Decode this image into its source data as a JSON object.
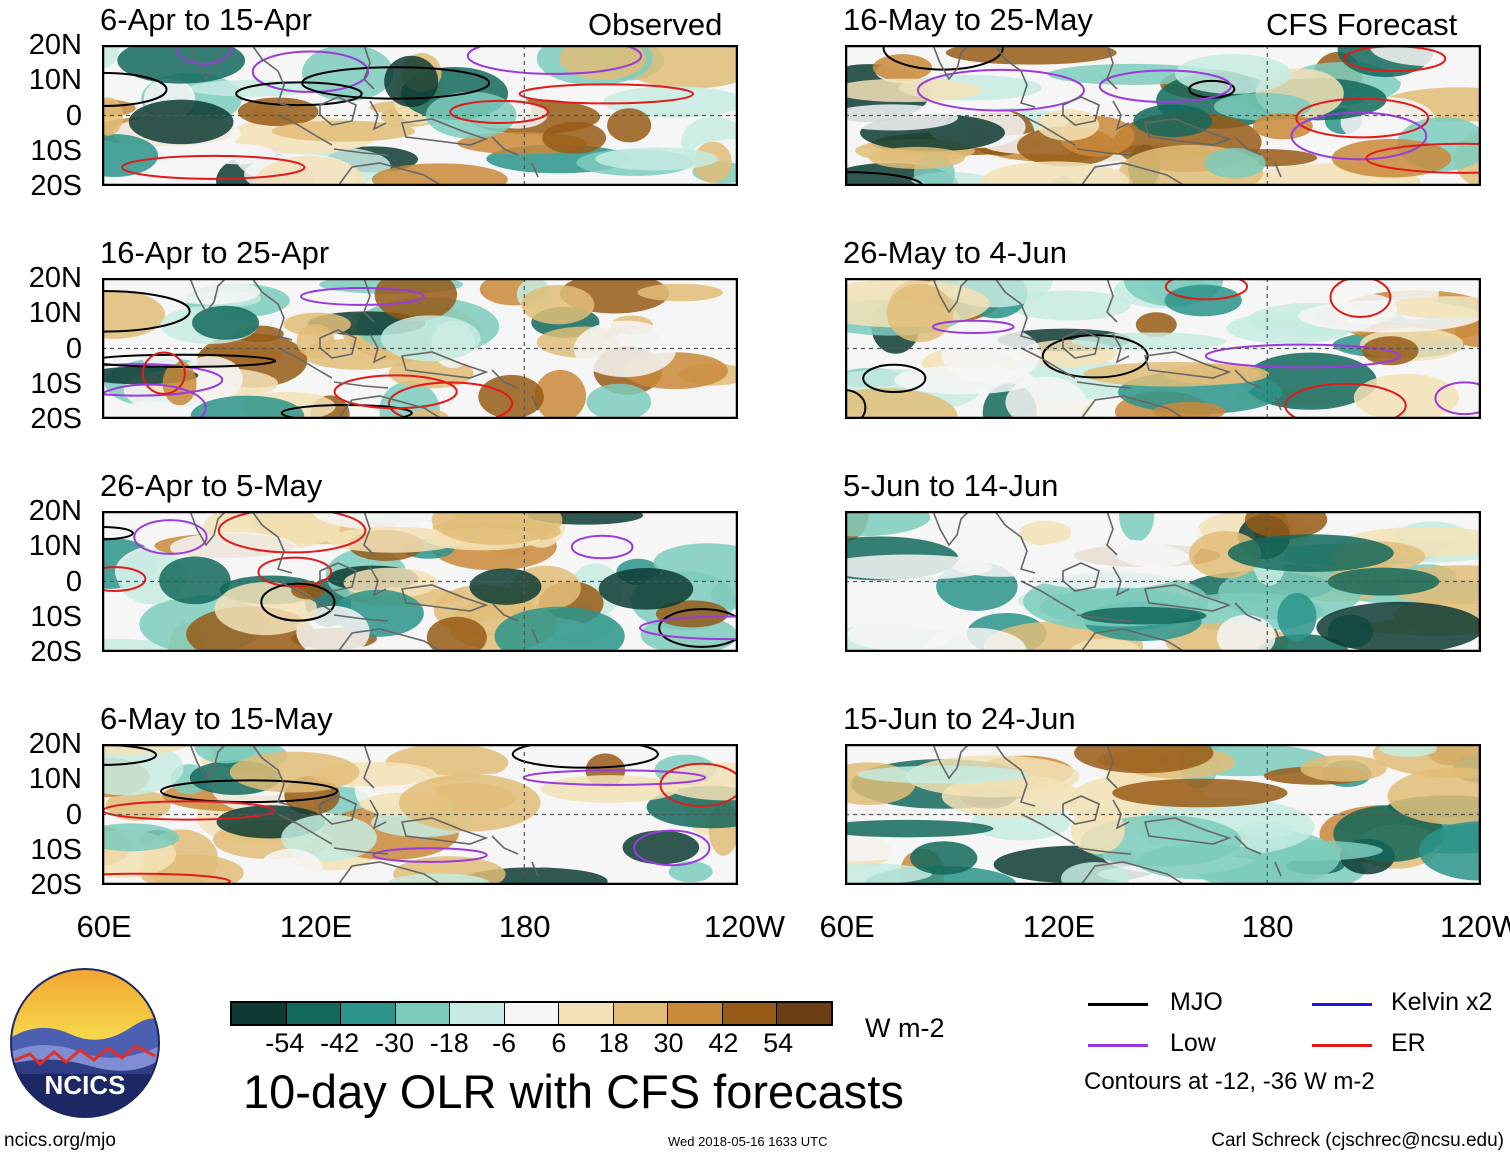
{
  "panels": [
    {
      "id": "p1",
      "title": "6-Apr to 15-Apr",
      "source": "Observed"
    },
    {
      "id": "p2",
      "title": "16-Apr to 25-Apr"
    },
    {
      "id": "p3",
      "title": "26-Apr to 5-May"
    },
    {
      "id": "p4",
      "title": "6-May to 15-May"
    },
    {
      "id": "p5",
      "title": "16-May to 25-May",
      "source": "CFS Forecast"
    },
    {
      "id": "p6",
      "title": "26-May to 4-Jun"
    },
    {
      "id": "p7",
      "title": "5-Jun to 14-Jun"
    },
    {
      "id": "p8",
      "title": "15-Jun to 24-Jun"
    }
  ],
  "lat_labels": [
    "20N",
    "10N",
    "0",
    "10S",
    "20S"
  ],
  "lon_labels": [
    "60E",
    "120E",
    "180",
    "120W"
  ],
  "colorbar": {
    "colors": [
      "#0d3b33",
      "#13685c",
      "#2c948a",
      "#7dcbbd",
      "#c5ebe2",
      "#f6f6f6",
      "#f3e2b7",
      "#e1bd78",
      "#c9893a",
      "#975a16",
      "#6b3d12"
    ],
    "ticks": [
      "-54",
      "-42",
      "-30",
      "-18",
      "-6",
      "6",
      "18",
      "30",
      "42",
      "54"
    ],
    "units": "W m-2"
  },
  "main_title": "10-day OLR with CFS forecasts",
  "legend": {
    "items": [
      {
        "label": "MJO",
        "color": "#000000"
      },
      {
        "label": "Kelvin x2",
        "color": "#1a1ae0"
      },
      {
        "label": "Low",
        "color": "#9b3bdc"
      },
      {
        "label": "ER",
        "color": "#e01b1b"
      }
    ],
    "contours_note": "Contours at -12, -36 W m-2"
  },
  "footer": {
    "url": "ncics.org/mjo",
    "timestamp": "Wed 2018-05-16 1633 UTC",
    "credit": "Carl Schreck (cjschrec@ncsu.edu)"
  },
  "logo": {
    "text": "NCICS"
  }
}
